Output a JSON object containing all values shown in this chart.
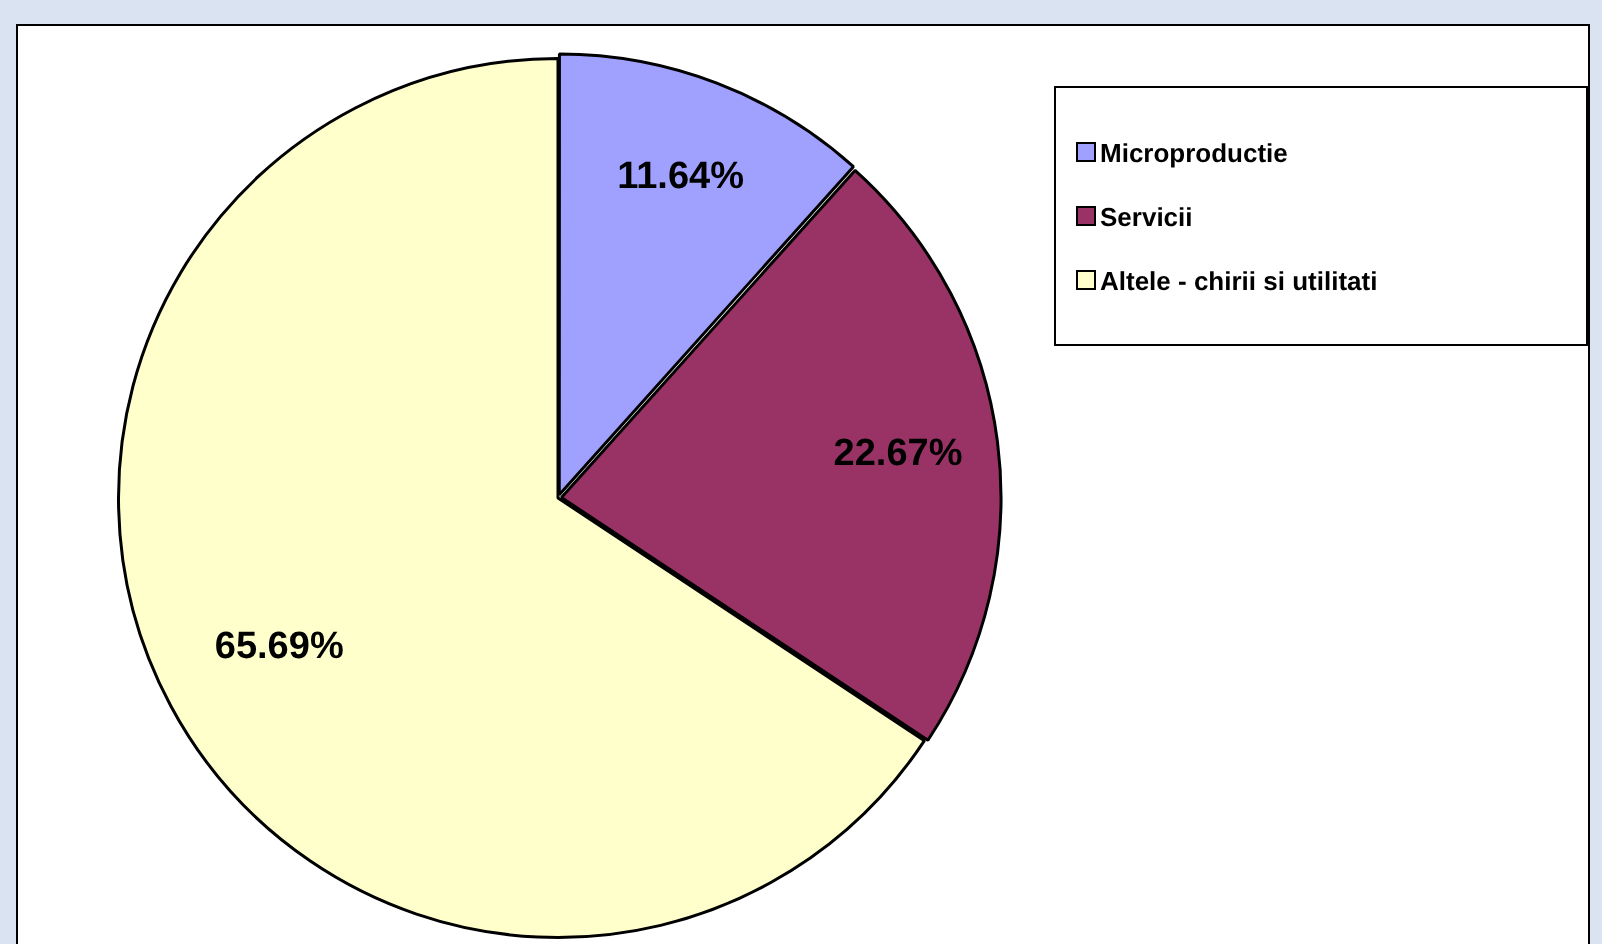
{
  "chart_data": {
    "type": "pie",
    "categories": [
      "Microproductie",
      "Servicii",
      "Altele - chirii si utilitati"
    ],
    "values": [
      11.64,
      22.67,
      65.69
    ],
    "colors": [
      "#a0a0ff",
      "#993366",
      "#ffffcc"
    ],
    "value_labels": [
      "11.64%",
      "22.67%",
      "65.69%"
    ],
    "legend": "top right"
  }
}
